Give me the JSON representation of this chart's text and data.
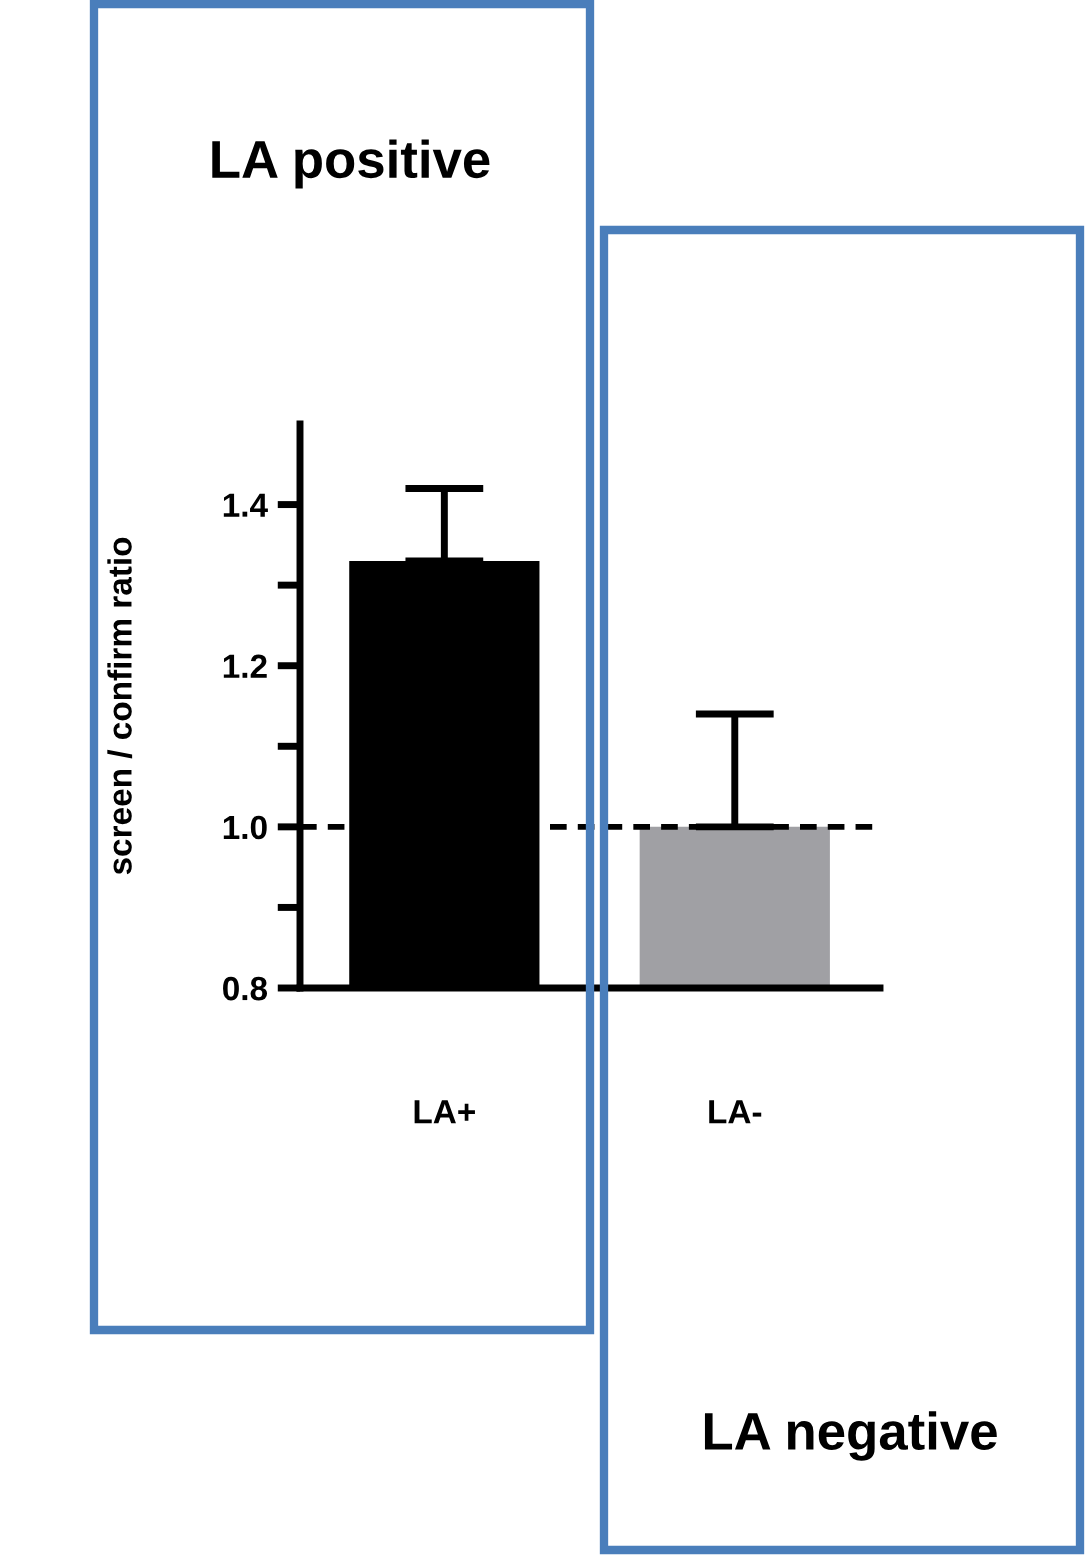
{
  "chart_data": {
    "type": "bar",
    "ylabel": "screen / confirm ratio",
    "categories": [
      "LA+",
      "LA-"
    ],
    "values": [
      1.33,
      1.0
    ],
    "colors": [
      "#000000",
      "#a0a0a4"
    ],
    "errors": [
      [
        1.33,
        1.42
      ],
      [
        1.0,
        1.14
      ]
    ],
    "ylim": [
      0.8,
      1.5
    ],
    "yticks": [
      0.8,
      {
        "value": 0.9,
        "label": null
      },
      {
        "value": 1.0,
        "label": "1.0"
      },
      {
        "value": 1.1,
        "label": null
      },
      1.2,
      {
        "value": 1.3,
        "label": null
      },
      1.4
    ],
    "ref_lines": [
      {
        "axis": "y",
        "value": 1.0,
        "line_style": "dashed",
        "color": "#000000"
      }
    ],
    "annotations": [
      "LA positive",
      "LA negative"
    ],
    "grid": false,
    "legend": false
  }
}
